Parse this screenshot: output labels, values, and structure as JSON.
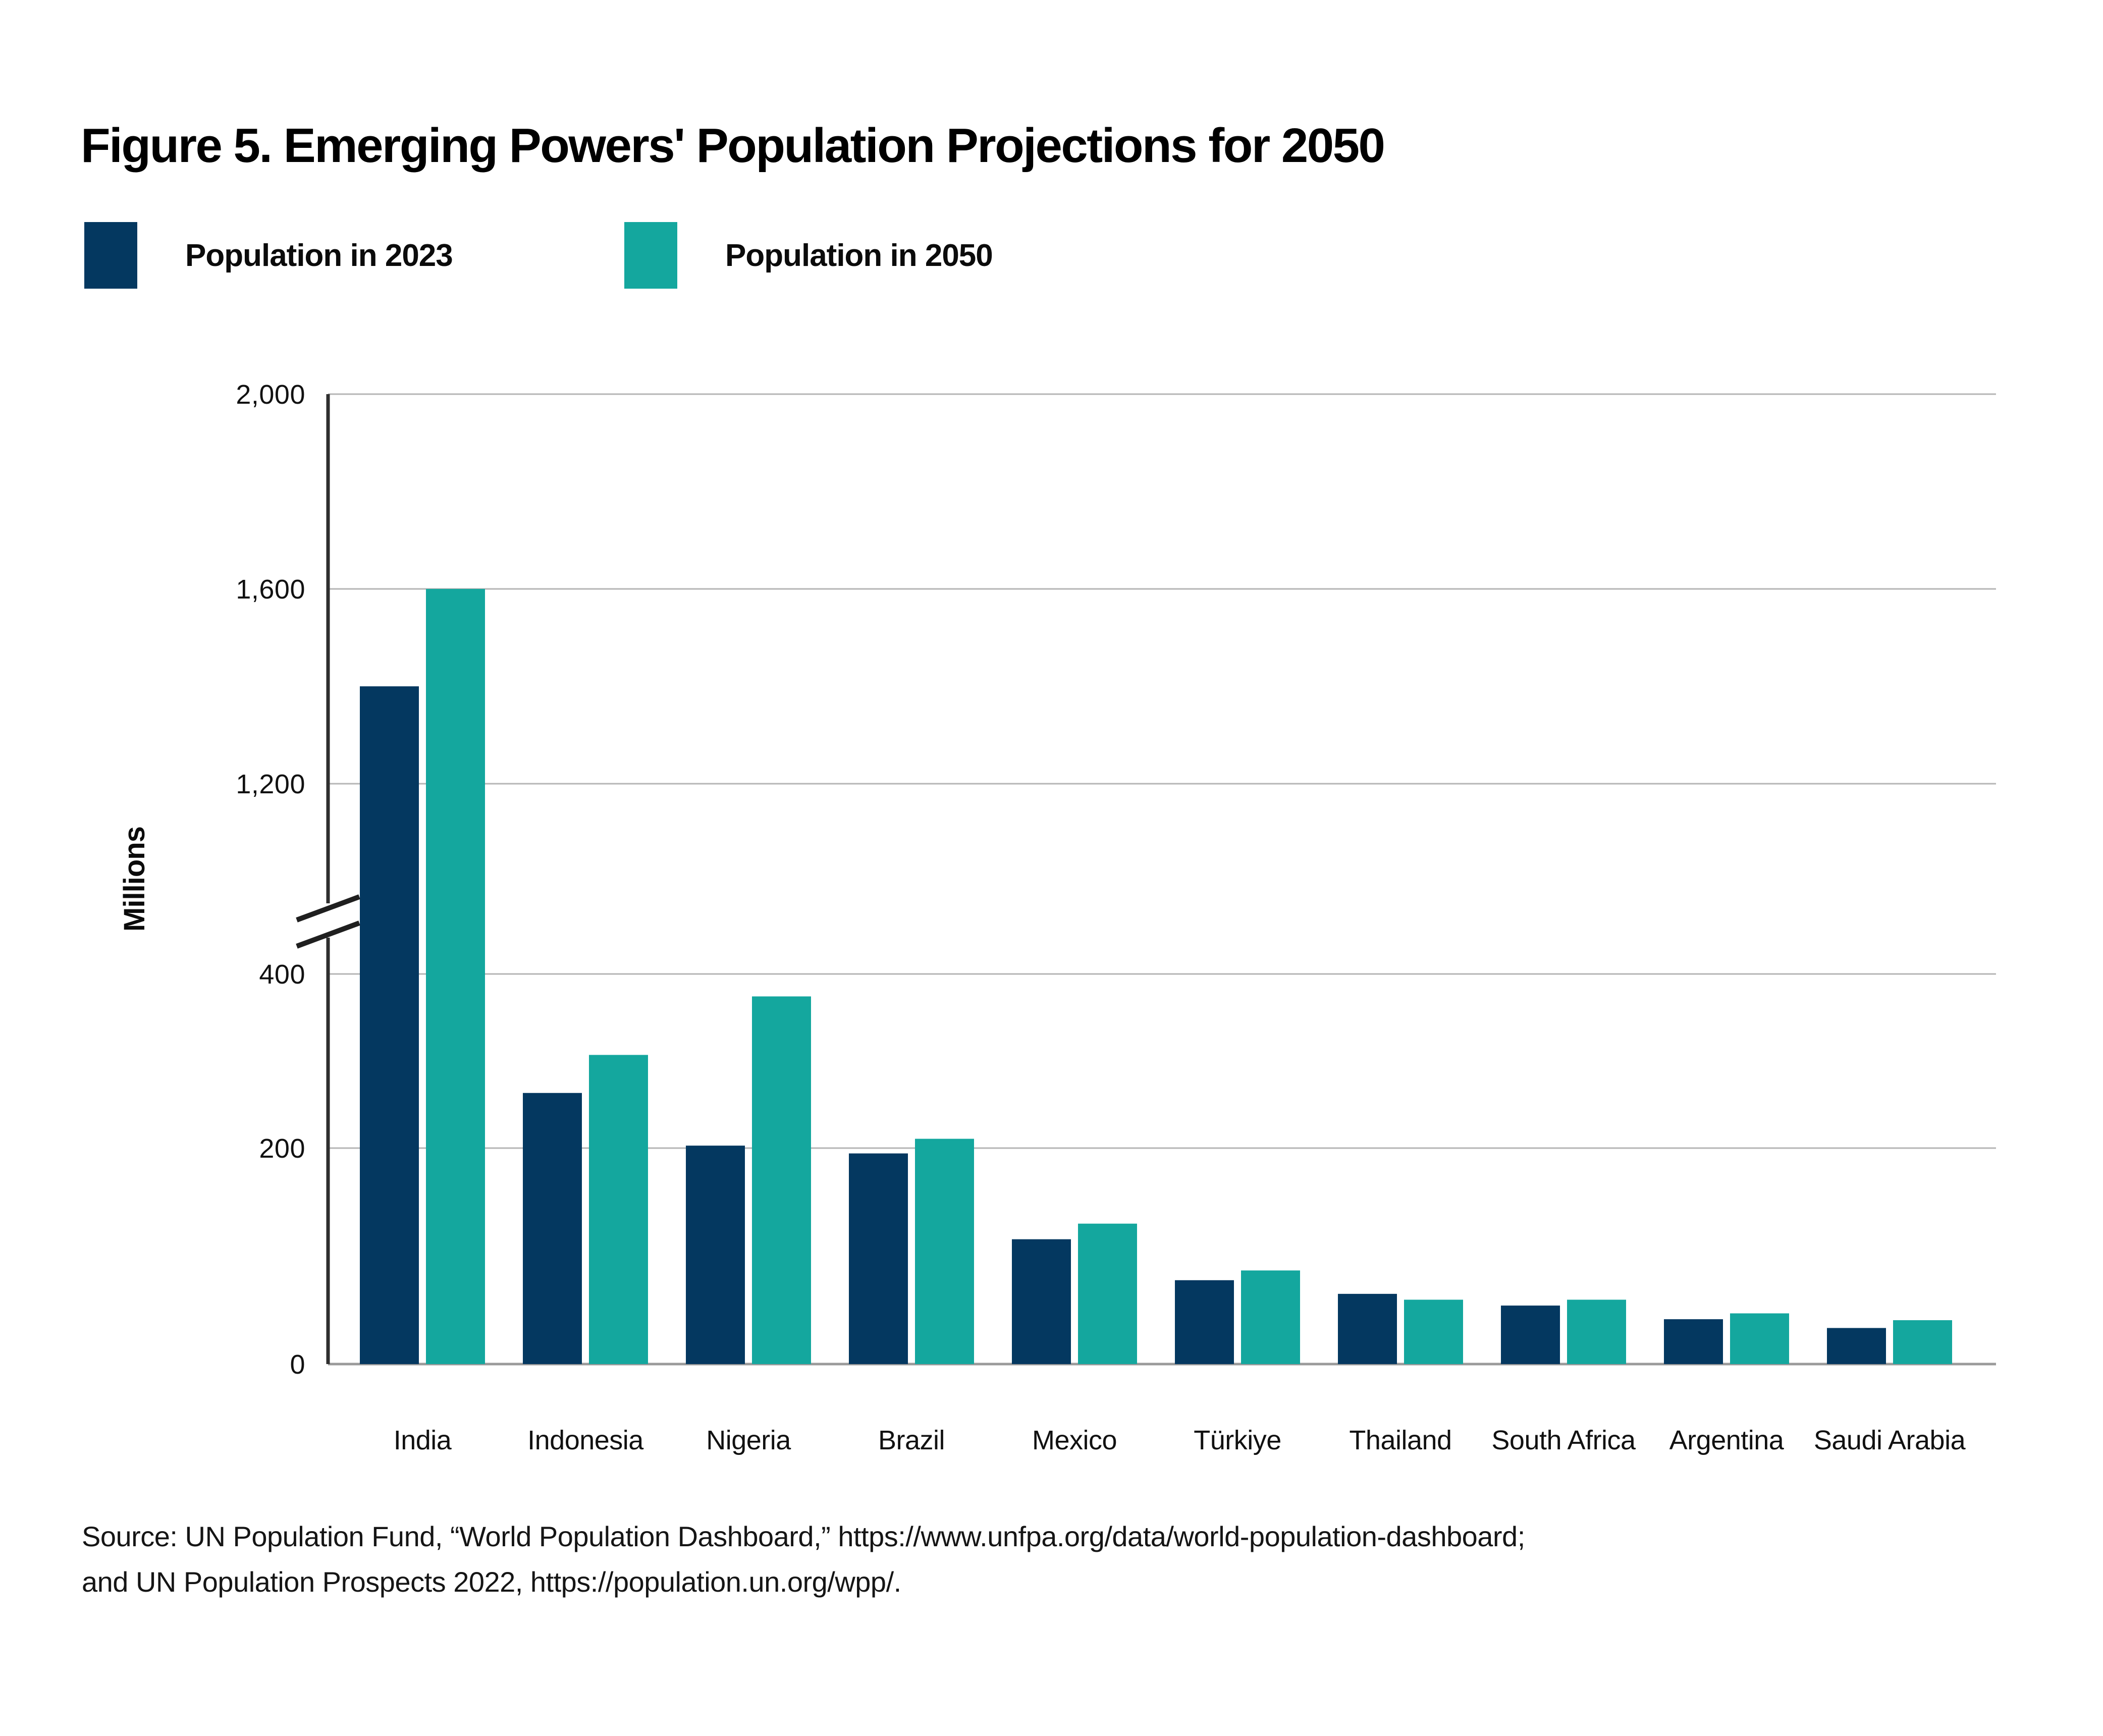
{
  "figure": {
    "title": "Figure 5. Emerging Powers' Population Projections for 2050"
  },
  "chart_data": {
    "type": "bar",
    "title": "Figure 5. Emerging Powers' Population Projections for 2050",
    "categories": [
      "India",
      "Indonesia",
      "Nigeria",
      "Brazil",
      "Mexico",
      "Türkiye",
      "Thailand",
      "South Africa",
      "Argentina",
      "Saudi Arabia"
    ],
    "series": [
      {
        "name": "Population in 2023",
        "color": "#043860",
        "values": [
          1400,
          278,
          224,
          216,
          128,
          86,
          72,
          60,
          46,
          37
        ]
      },
      {
        "name": "Population in 2050",
        "color": "#14a79e",
        "values": [
          1600,
          317,
          377,
          231,
          144,
          96,
          66,
          66,
          52,
          45
        ]
      }
    ],
    "xlabel": "",
    "ylabel": "Millions",
    "unit": "Millions",
    "grid": true,
    "legend_position": "top-left",
    "y_axis": {
      "broken": true,
      "break_between": [
        400,
        1200
      ],
      "lower_ticks": [
        0,
        200,
        400
      ],
      "upper_ticks": [
        1200,
        1600,
        2000
      ],
      "tick_labels_lower": [
        "0",
        "200",
        "400"
      ],
      "tick_labels_upper": [
        "1,200",
        "1,600",
        "2,000"
      ],
      "ylim": [
        0,
        2000
      ]
    }
  },
  "source": {
    "line1": "Source: UN Population Fund, “World Population Dashboard,” https://www.unfpa.org/data/world-population-dashboard;",
    "line2": "and UN Population Prospects 2022,  https://population.un.org/wpp/."
  },
  "colors": {
    "series_2023": "#043860",
    "series_2050": "#14a79e",
    "gridline": "#b5b5b5",
    "baseline": "#9a9a9a",
    "axis": "#2e2e2e",
    "text": "#111111"
  }
}
